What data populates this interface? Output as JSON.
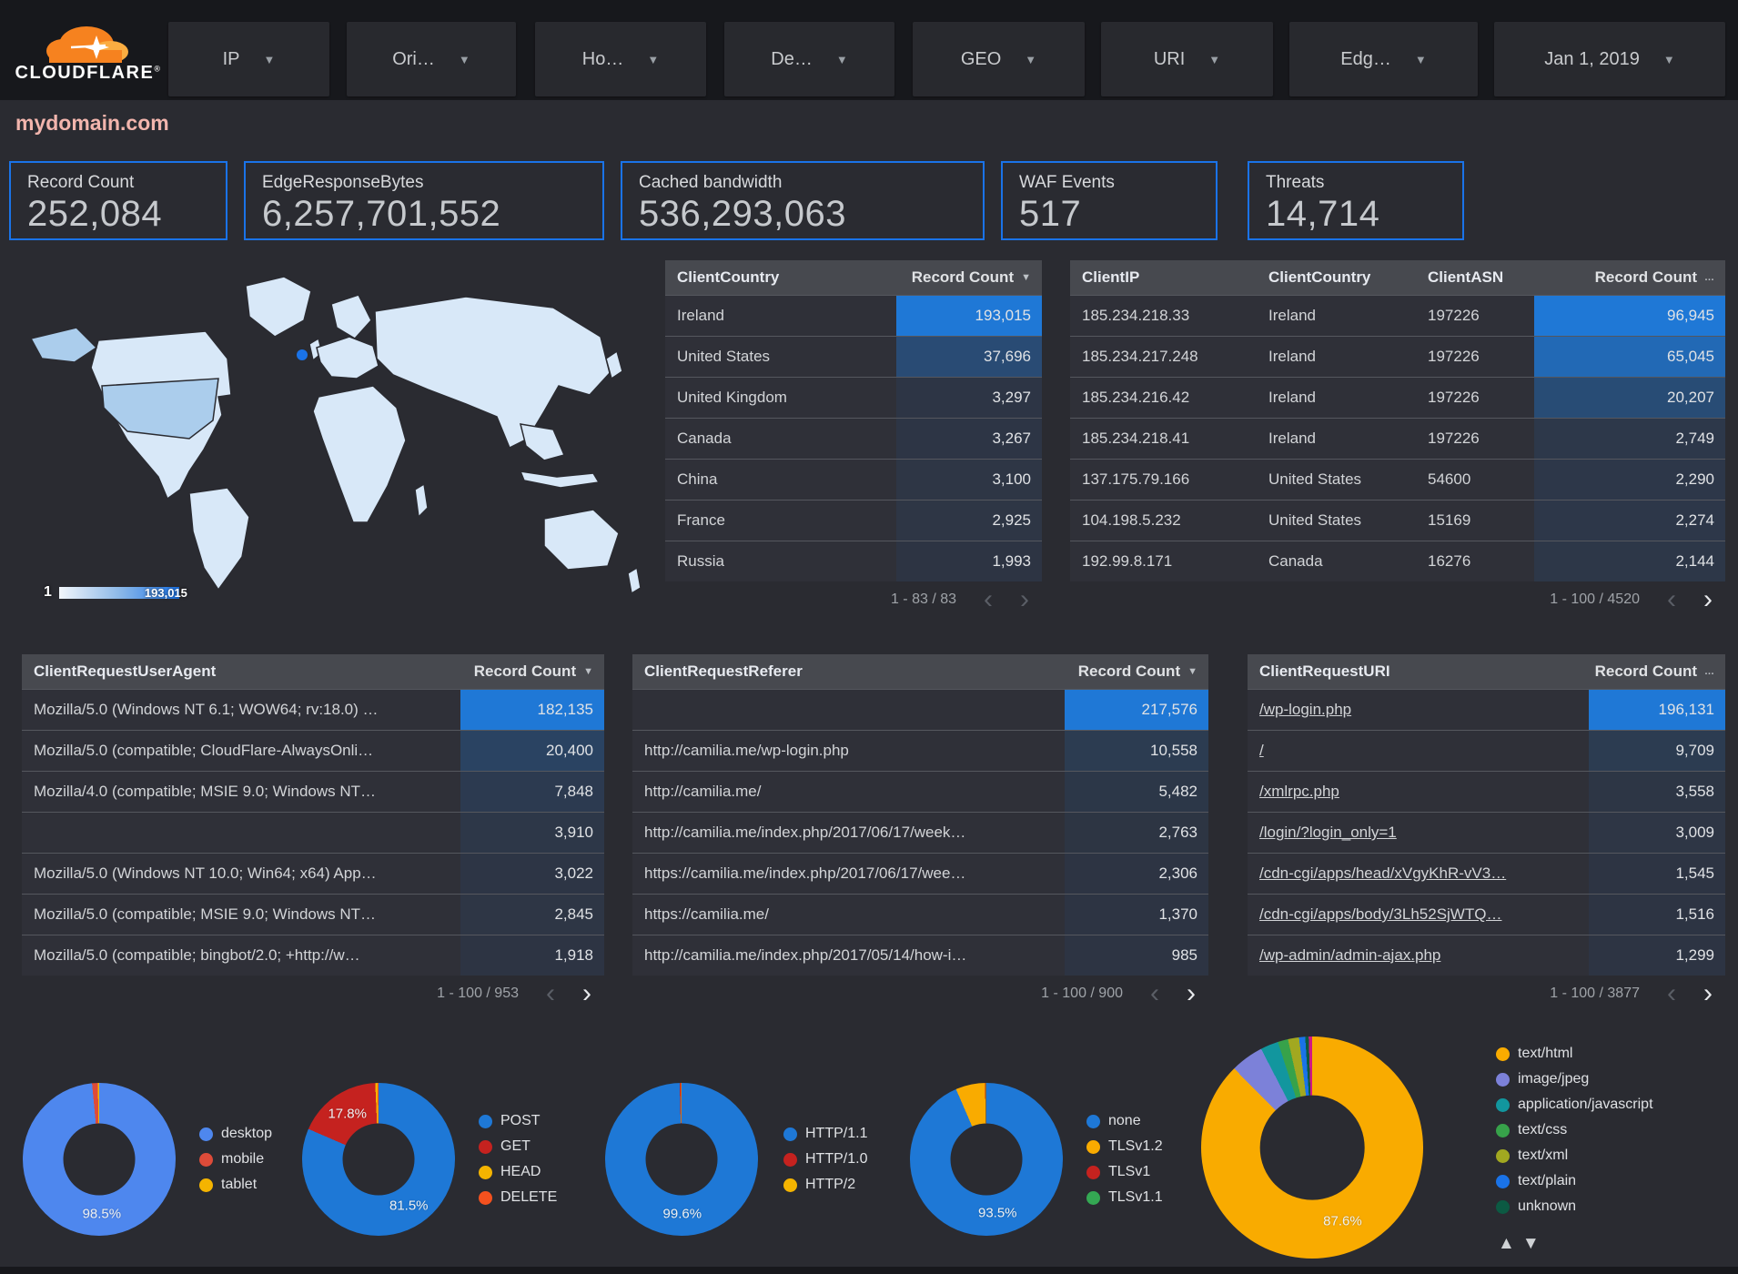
{
  "brand": {
    "name": "CLOUDFLARE",
    "reg_mark": "®"
  },
  "topbar": {
    "filters": [
      {
        "label": "IP"
      },
      {
        "label": "Ori…"
      },
      {
        "label": "Ho…"
      },
      {
        "label": "De…"
      },
      {
        "label": "GEO"
      },
      {
        "label": "URI"
      },
      {
        "label": "Edg…"
      },
      {
        "label": "Jan 1, 2019"
      }
    ]
  },
  "page": {
    "domain": "mydomain.com"
  },
  "scorecards": [
    {
      "label": "Record Count",
      "value": "252,084"
    },
    {
      "label": "EdgeResponseBytes",
      "value": "6,257,701,552"
    },
    {
      "label": "Cached bandwidth",
      "value": "536,293,063"
    },
    {
      "label": "WAF Events",
      "value": "517"
    },
    {
      "label": "Threats",
      "value": "14,714"
    }
  ],
  "map": {
    "scale_min": "1",
    "scale_max": "193,015"
  },
  "tables": {
    "client_country": {
      "columns": [
        {
          "label": "ClientCountry",
          "key": "country",
          "align": "left"
        },
        {
          "label": "Record Count",
          "key": "count",
          "align": "right",
          "heat": true,
          "sort": "▼"
        }
      ],
      "heat_max": 193015,
      "rows": [
        {
          "country": "Ireland",
          "count": "193,015",
          "count_n": 193015
        },
        {
          "country": "United States",
          "count": "37,696",
          "count_n": 37696
        },
        {
          "country": "United Kingdom",
          "count": "3,297",
          "count_n": 3297
        },
        {
          "country": "Canada",
          "count": "3,267",
          "count_n": 3267
        },
        {
          "country": "China",
          "count": "3,100",
          "count_n": 3100
        },
        {
          "country": "France",
          "count": "2,925",
          "count_n": 2925
        },
        {
          "country": "Russia",
          "count": "1,993",
          "count_n": 1993
        }
      ],
      "pagination": {
        "range": "1 - 83 / 83",
        "prev": false,
        "next": false
      }
    },
    "client_ip": {
      "columns": [
        {
          "label": "ClientIP",
          "key": "ip",
          "align": "left"
        },
        {
          "label": "ClientCountry",
          "key": "country",
          "align": "left"
        },
        {
          "label": "ClientASN",
          "key": "asn",
          "align": "left"
        },
        {
          "label": "Record Count",
          "key": "count",
          "align": "right",
          "heat": true,
          "sort": "…"
        }
      ],
      "heat_max": 96945,
      "rows": [
        {
          "ip": "185.234.218.33",
          "country": "Ireland",
          "asn": "197226",
          "count": "96,945",
          "count_n": 96945
        },
        {
          "ip": "185.234.217.248",
          "country": "Ireland",
          "asn": "197226",
          "count": "65,045",
          "count_n": 65045
        },
        {
          "ip": "185.234.216.42",
          "country": "Ireland",
          "asn": "197226",
          "count": "20,207",
          "count_n": 20207
        },
        {
          "ip": "185.234.218.41",
          "country": "Ireland",
          "asn": "197226",
          "count": "2,749",
          "count_n": 2749
        },
        {
          "ip": "137.175.79.166",
          "country": "United States",
          "asn": "54600",
          "count": "2,290",
          "count_n": 2290
        },
        {
          "ip": "104.198.5.232",
          "country": "United States",
          "asn": "15169",
          "count": "2,274",
          "count_n": 2274
        },
        {
          "ip": "192.99.8.171",
          "country": "Canada",
          "asn": "16276",
          "count": "2,144",
          "count_n": 2144
        }
      ],
      "pagination": {
        "range": "1 - 100 / 4520",
        "prev": false,
        "next": true
      }
    },
    "user_agent": {
      "columns": [
        {
          "label": "ClientRequestUserAgent",
          "key": "ua",
          "align": "left"
        },
        {
          "label": "Record Count",
          "key": "count",
          "align": "right",
          "heat": true,
          "sort": "▼"
        }
      ],
      "heat_max": 182135,
      "rows": [
        {
          "ua": "Mozilla/5.0 (Windows NT 6.1; WOW64; rv:18.0) …",
          "count": "182,135",
          "count_n": 182135
        },
        {
          "ua": "Mozilla/5.0 (compatible; CloudFlare-AlwaysOnli…",
          "count": "20,400",
          "count_n": 20400
        },
        {
          "ua": "Mozilla/4.0 (compatible; MSIE 9.0; Windows NT…",
          "count": "7,848",
          "count_n": 7848
        },
        {
          "ua": "",
          "count": "3,910",
          "count_n": 3910
        },
        {
          "ua": "Mozilla/5.0 (Windows NT 10.0; Win64; x64) App…",
          "count": "3,022",
          "count_n": 3022
        },
        {
          "ua": "Mozilla/5.0 (compatible; MSIE 9.0; Windows NT…",
          "count": "2,845",
          "count_n": 2845
        },
        {
          "ua": "Mozilla/5.0 (compatible; bingbot/2.0; +http://w…",
          "count": "1,918",
          "count_n": 1918
        }
      ],
      "pagination": {
        "range": "1 - 100 / 953",
        "prev": false,
        "next": true
      }
    },
    "referer": {
      "columns": [
        {
          "label": "ClientRequestReferer",
          "key": "ref",
          "align": "left"
        },
        {
          "label": "Record Count",
          "key": "count",
          "align": "right",
          "heat": true,
          "sort": "▼"
        }
      ],
      "heat_max": 217576,
      "rows": [
        {
          "ref": "",
          "count": "217,576",
          "count_n": 217576
        },
        {
          "ref": "http://camilia.me/wp-login.php",
          "count": "10,558",
          "count_n": 10558
        },
        {
          "ref": "http://camilia.me/",
          "count": "5,482",
          "count_n": 5482
        },
        {
          "ref": "http://camilia.me/index.php/2017/06/17/week…",
          "count": "2,763",
          "count_n": 2763
        },
        {
          "ref": "https://camilia.me/index.php/2017/06/17/wee…",
          "count": "2,306",
          "count_n": 2306
        },
        {
          "ref": "https://camilia.me/",
          "count": "1,370",
          "count_n": 1370
        },
        {
          "ref": "http://camilia.me/index.php/2017/05/14/how-i…",
          "count": "985",
          "count_n": 985
        }
      ],
      "pagination": {
        "range": "1 - 100 / 900",
        "prev": false,
        "next": true
      }
    },
    "request_uri": {
      "columns": [
        {
          "label": "ClientRequestURI",
          "key": "uri",
          "align": "left",
          "link": true
        },
        {
          "label": "Record Count",
          "key": "count",
          "align": "right",
          "heat": true,
          "sort": "…"
        }
      ],
      "heat_max": 196131,
      "rows": [
        {
          "uri": "/wp-login.php",
          "count": "196,131",
          "count_n": 196131
        },
        {
          "uri": "/",
          "count": "9,709",
          "count_n": 9709
        },
        {
          "uri": "/xmlrpc.php",
          "count": "3,558",
          "count_n": 3558
        },
        {
          "uri": "/login/?login_only=1",
          "count": "3,009",
          "count_n": 3009
        },
        {
          "uri": "/cdn-cgi/apps/head/xVgyKhR-vV3…",
          "count": "1,545",
          "count_n": 1545
        },
        {
          "uri": "/cdn-cgi/apps/body/3Lh52SjWTQ…",
          "count": "1,516",
          "count_n": 1516
        },
        {
          "uri": "/wp-admin/admin-ajax.php",
          "count": "1,299",
          "count_n": 1299
        }
      ],
      "pagination": {
        "range": "1 - 100 / 3877",
        "prev": false,
        "next": true
      }
    }
  },
  "chart_data": {
    "geo_map": {
      "type": "heatmap",
      "title": "records by country",
      "scale_min": 1,
      "scale_max": 193015,
      "max_country": "Ireland"
    },
    "donuts": [
      {
        "type": "pie",
        "name": "device-type",
        "legend_position": "right",
        "slices": [
          {
            "label": "desktop",
            "value": 98.5,
            "color": "#4e87ee",
            "pct_label": "98.5%"
          },
          {
            "label": "mobile",
            "value": 1.2,
            "color": "#dd4b39"
          },
          {
            "label": "tablet",
            "value": 0.3,
            "color": "#f4b400"
          }
        ]
      },
      {
        "type": "pie",
        "name": "http-method",
        "legend_position": "right",
        "slices": [
          {
            "label": "POST",
            "value": 81.5,
            "color": "#1e78d6",
            "pct_label": "81.5%"
          },
          {
            "label": "GET",
            "value": 17.8,
            "color": "#c5221f",
            "pct_label": "17.8%"
          },
          {
            "label": "HEAD",
            "value": 0.5,
            "color": "#f4b400"
          },
          {
            "label": "DELETE",
            "value": 0.2,
            "color": "#f4511e"
          }
        ]
      },
      {
        "type": "pie",
        "name": "http-protocol",
        "legend_position": "right",
        "slices": [
          {
            "label": "HTTP/1.1",
            "value": 99.6,
            "color": "#1e78d6",
            "pct_label": "99.6%"
          },
          {
            "label": "HTTP/1.0",
            "value": 0.3,
            "color": "#c5221f"
          },
          {
            "label": "HTTP/2",
            "value": 0.1,
            "color": "#f4b400"
          }
        ]
      },
      {
        "type": "pie",
        "name": "tls-version",
        "legend_position": "right",
        "slices": [
          {
            "label": "none",
            "value": 93.5,
            "color": "#1e78d6",
            "pct_label": "93.5%"
          },
          {
            "label": "TLSv1.2",
            "value": 6.2,
            "color": "#f9ab00"
          },
          {
            "label": "TLSv1",
            "value": 0.2,
            "color": "#c5221f"
          },
          {
            "label": "TLSv1.1",
            "value": 0.1,
            "color": "#34a853"
          }
        ]
      },
      {
        "type": "pie",
        "name": "content-type",
        "legend_position": "right",
        "legend_scrollable": true,
        "slices": [
          {
            "label": "text/html",
            "value": 87.6,
            "color": "#f9ab00",
            "pct_label": "87.6%"
          },
          {
            "label": "image/jpeg",
            "value": 4.8,
            "color": "#7c81d9"
          },
          {
            "label": "application/javascript",
            "value": 2.6,
            "color": "#12969e"
          },
          {
            "label": "text/css",
            "value": 1.5,
            "color": "#37a24a"
          },
          {
            "label": "text/xml",
            "value": 1.6,
            "color": "#a2a820"
          },
          {
            "label": "text/plain",
            "value": 0.9,
            "color": "#1a73e8"
          },
          {
            "label": "unknown",
            "value": 0.5,
            "color": "#0c5a43"
          },
          {
            "label": "",
            "value": 0.5,
            "color": "#d01884"
          }
        ]
      }
    ]
  },
  "pager_glyphs": {
    "prev": "‹",
    "next": "›"
  },
  "legend_arrows": {
    "up": "▲",
    "down": "▼"
  }
}
